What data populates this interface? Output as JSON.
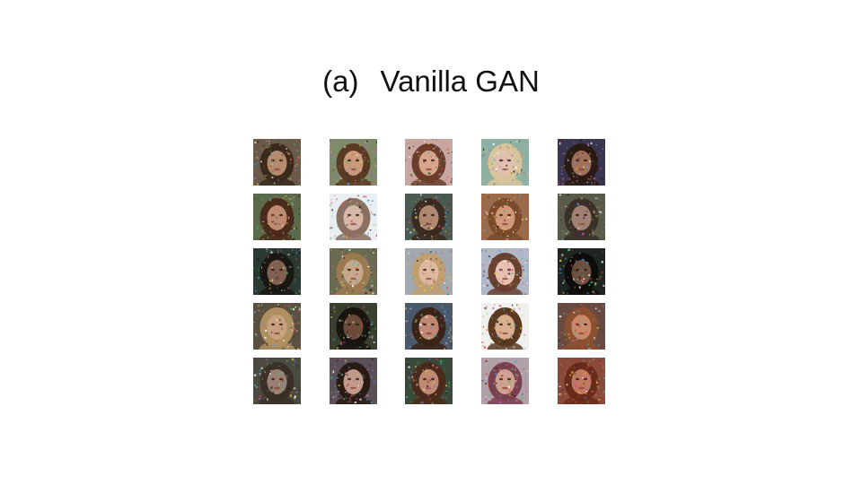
{
  "title": {
    "label": "(a)",
    "text": "Vanilla GAN"
  },
  "grid": {
    "rows": 5,
    "cols": 5,
    "samples": [
      {
        "bg": "#6a5a4a",
        "hair": "#3a2a1c",
        "skin": "#b58b6e"
      },
      {
        "bg": "#7f8a6a",
        "hair": "#5a3a22",
        "skin": "#c89a7a"
      },
      {
        "bg": "#c9a7a0",
        "hair": "#6b3d2a",
        "skin": "#d8a58a"
      },
      {
        "bg": "#8fb0a0",
        "hair": "#d8c49a",
        "skin": "#e0c0ae"
      },
      {
        "bg": "#3a3550",
        "hair": "#2a1a14",
        "skin": "#a07058"
      },
      {
        "bg": "#5a6a4a",
        "hair": "#4a2a1a",
        "skin": "#c08a70"
      },
      {
        "bg": "#e8eef2",
        "hair": "#8a7060",
        "skin": "#d8b8a8"
      },
      {
        "bg": "#4a5a50",
        "hair": "#3a2a20",
        "skin": "#b08870"
      },
      {
        "bg": "#9a6a4a",
        "hair": "#7a4a2a",
        "skin": "#d09a7a"
      },
      {
        "bg": "#5a5a4a",
        "hair": "#3a3028",
        "skin": "#a08070"
      },
      {
        "bg": "#2a3a32",
        "hair": "#1a1612",
        "skin": "#806050"
      },
      {
        "bg": "#6a6a50",
        "hair": "#9a7a50",
        "skin": "#c8a88a"
      },
      {
        "bg": "#a0a8b0",
        "hair": "#c0a070",
        "skin": "#e0b8a0"
      },
      {
        "bg": "#b0b8c8",
        "hair": "#6a4030",
        "skin": "#e8c0b0"
      },
      {
        "bg": "#1e2420",
        "hair": "#0e0c0a",
        "skin": "#6a5040"
      },
      {
        "bg": "#5a5040",
        "hair": "#b09060",
        "skin": "#c8a080"
      },
      {
        "bg": "#3a4030",
        "hair": "#1a1410",
        "skin": "#6a4a38"
      },
      {
        "bg": "#4a5a6a",
        "hair": "#3a2418",
        "skin": "#c08870"
      },
      {
        "bg": "#f0f0ec",
        "hair": "#5a3a20",
        "skin": "#d8b090"
      },
      {
        "bg": "#6a4a40",
        "hair": "#8a5030",
        "skin": "#c88a68"
      },
      {
        "bg": "#4a4a40",
        "hair": "#3a3028",
        "skin": "#9a8070"
      },
      {
        "bg": "#5a5058",
        "hair": "#2a1a14",
        "skin": "#c09a8a"
      },
      {
        "bg": "#3a4a3a",
        "hair": "#4a2a1a",
        "skin": "#c08a70"
      },
      {
        "bg": "#b0a0a8",
        "hair": "#7a4050",
        "skin": "#d0a090"
      },
      {
        "bg": "#8a4a3a",
        "hair": "#6a2a1a",
        "skin": "#c07860"
      }
    ]
  }
}
